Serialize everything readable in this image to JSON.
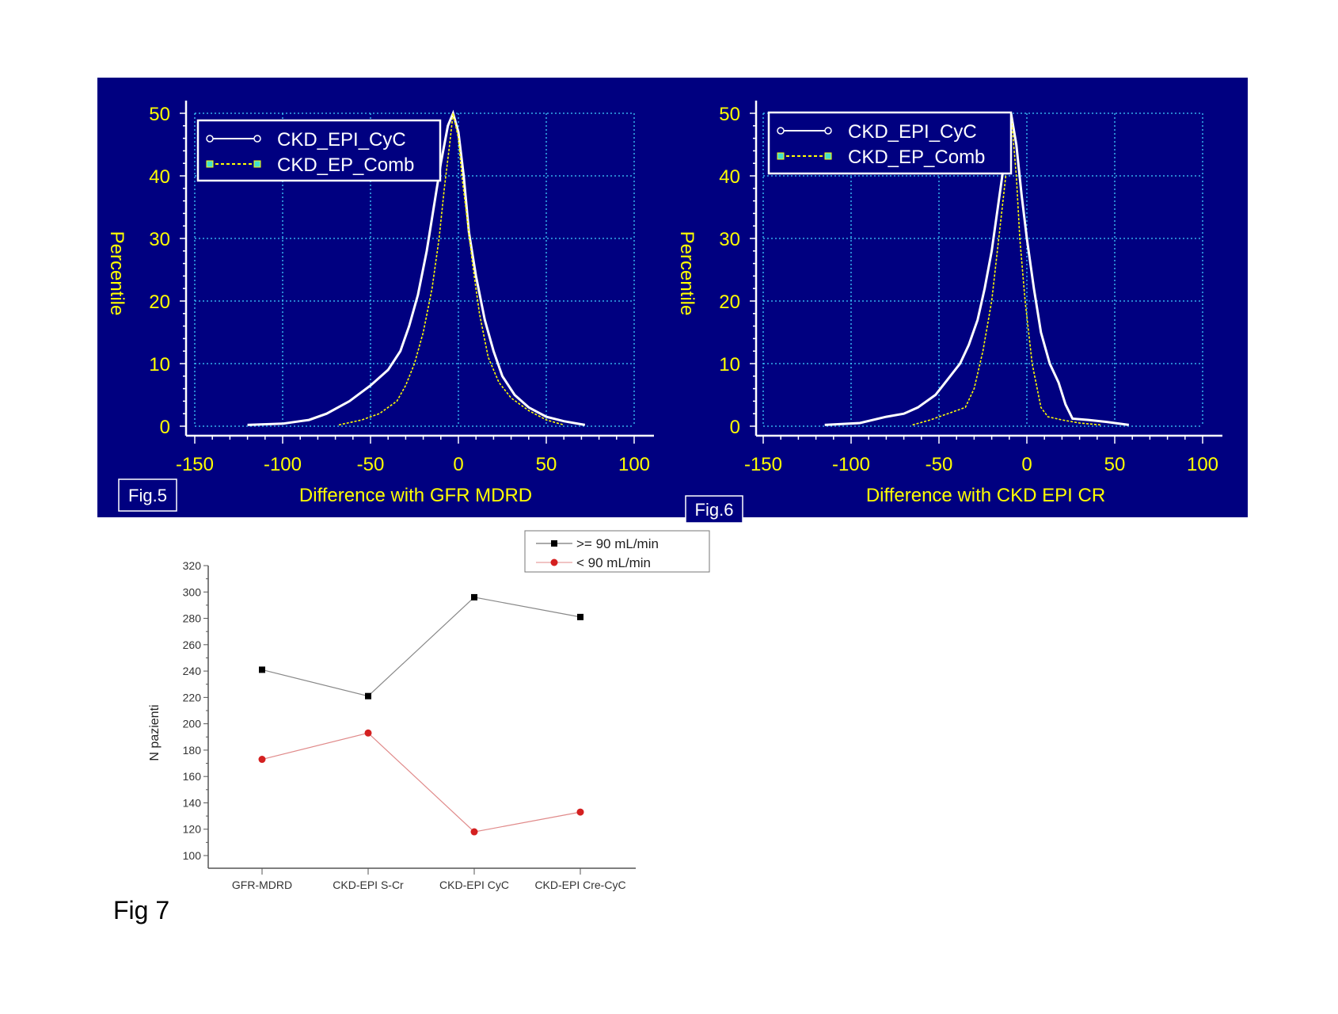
{
  "chart_data": [
    {
      "type": "line",
      "figure_label": "Fig.5",
      "title": "",
      "xlabel": "Difference with GFR MDRD",
      "ylabel": "Percentile",
      "xlim": [
        -150,
        100
      ],
      "ylim": [
        0,
        50
      ],
      "xticks": [
        -150,
        -100,
        -50,
        0,
        50,
        100
      ],
      "yticks": [
        0,
        10,
        20,
        30,
        40,
        50
      ],
      "grid": true,
      "legend_position": "top-left",
      "series": [
        {
          "name": "CKD_EPI_CyC",
          "color": "#ffffff",
          "points": [
            [
              -120,
              0.2
            ],
            [
              -100,
              0.4
            ],
            [
              -85,
              1
            ],
            [
              -75,
              2
            ],
            [
              -62,
              4
            ],
            [
              -50,
              6.5
            ],
            [
              -40,
              9
            ],
            [
              -33,
              12
            ],
            [
              -28,
              16
            ],
            [
              -23,
              21
            ],
            [
              -18,
              28
            ],
            [
              -14,
              35
            ],
            [
              -10,
              42
            ],
            [
              -6,
              48
            ],
            [
              -3,
              50
            ],
            [
              0,
              47
            ],
            [
              3,
              40
            ],
            [
              6,
              31
            ],
            [
              10,
              24
            ],
            [
              15,
              17
            ],
            [
              20,
              12
            ],
            [
              25,
              8
            ],
            [
              32,
              5
            ],
            [
              40,
              3
            ],
            [
              50,
              1.5
            ],
            [
              60,
              0.8
            ],
            [
              72,
              0.2
            ]
          ]
        },
        {
          "name": "CKD_EP_Comb",
          "color": "#ffff00",
          "points": [
            [
              -68,
              0.2
            ],
            [
              -55,
              1
            ],
            [
              -45,
              2
            ],
            [
              -35,
              4
            ],
            [
              -30,
              6.5
            ],
            [
              -25,
              10
            ],
            [
              -20,
              15
            ],
            [
              -15,
              22
            ],
            [
              -11,
              30
            ],
            [
              -8,
              38
            ],
            [
              -5,
              45
            ],
            [
              -3,
              50
            ],
            [
              0,
              46
            ],
            [
              2,
              40
            ],
            [
              5,
              33
            ],
            [
              8,
              26
            ],
            [
              12,
              18
            ],
            [
              17,
              11
            ],
            [
              23,
              7
            ],
            [
              30,
              4.5
            ],
            [
              40,
              2.5
            ],
            [
              50,
              1
            ],
            [
              60,
              0.2
            ]
          ]
        }
      ]
    },
    {
      "type": "line",
      "figure_label": "Fig.6",
      "title": "",
      "xlabel": "Difference with CKD EPI CR",
      "ylabel": "Percentile",
      "xlim": [
        -150,
        100
      ],
      "ylim": [
        0,
        50
      ],
      "xticks": [
        -150,
        -100,
        -50,
        0,
        50,
        100
      ],
      "yticks": [
        0,
        10,
        20,
        30,
        40,
        50
      ],
      "grid": true,
      "legend_position": "top-left",
      "series": [
        {
          "name": "CKD_EPI_CyC",
          "color": "#ffffff",
          "points": [
            [
              -115,
              0.2
            ],
            [
              -95,
              0.5
            ],
            [
              -80,
              1.5
            ],
            [
              -70,
              2
            ],
            [
              -62,
              3
            ],
            [
              -52,
              5
            ],
            [
              -45,
              7.5
            ],
            [
              -38,
              10
            ],
            [
              -33,
              13
            ],
            [
              -28,
              17
            ],
            [
              -24,
              22
            ],
            [
              -20,
              28
            ],
            [
              -16,
              36
            ],
            [
              -12,
              44
            ],
            [
              -9,
              50
            ],
            [
              -6,
              45
            ],
            [
              -3,
              37
            ],
            [
              0,
              30
            ],
            [
              4,
              22
            ],
            [
              8,
              15
            ],
            [
              13,
              10
            ],
            [
              18,
              7
            ],
            [
              22,
              3.5
            ],
            [
              26,
              1.2
            ],
            [
              35,
              1
            ],
            [
              45,
              0.7
            ],
            [
              58,
              0.2
            ]
          ]
        },
        {
          "name": "CKD_EP_Comb",
          "color": "#ffff00",
          "points": [
            [
              -65,
              0.2
            ],
            [
              -55,
              1
            ],
            [
              -45,
              2
            ],
            [
              -35,
              3
            ],
            [
              -30,
              6
            ],
            [
              -25,
              12
            ],
            [
              -20,
              20
            ],
            [
              -16,
              30
            ],
            [
              -12,
              40
            ],
            [
              -9,
              50
            ],
            [
              -6,
              40
            ],
            [
              -4,
              30
            ],
            [
              -1,
              20
            ],
            [
              3,
              10
            ],
            [
              8,
              3
            ],
            [
              12,
              1.5
            ],
            [
              20,
              1
            ],
            [
              30,
              0.5
            ],
            [
              42,
              0.2
            ]
          ]
        }
      ]
    },
    {
      "type": "line",
      "figure_label": "Fig 7",
      "title": "",
      "xlabel": "",
      "ylabel": "N pazienti",
      "ylim": [
        100,
        320
      ],
      "yticks": [
        100,
        120,
        140,
        160,
        180,
        200,
        220,
        240,
        260,
        280,
        300,
        320
      ],
      "categories": [
        "GFR-MDRD",
        "CKD-EPI S-Cr",
        "CKD-EPI CyC",
        "CKD-EPI Cre-CyC"
      ],
      "grid": false,
      "legend_position": "top-right",
      "series": [
        {
          "name": ">= 90 mL/min",
          "color": "#000000",
          "values": [
            241,
            221,
            296,
            281
          ]
        },
        {
          "name": "< 90 mL/min",
          "color": "#d42020",
          "values": [
            173,
            193,
            118,
            133
          ]
        }
      ]
    }
  ]
}
